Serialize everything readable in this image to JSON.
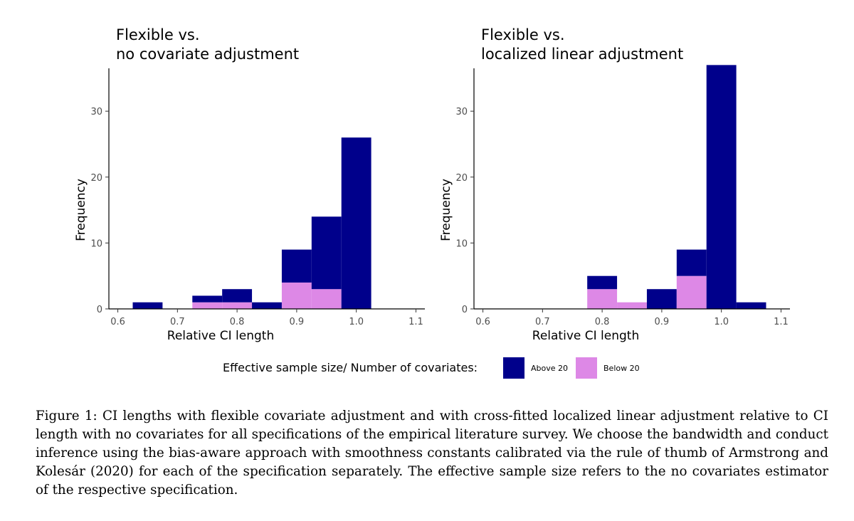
{
  "legend": {
    "title": "Effective sample size/ Number of covariates:",
    "items": [
      {
        "label": "Above 20",
        "color": "#00008b"
      },
      {
        "label": "Below 20",
        "color": "#dd88e6"
      }
    ]
  },
  "chart_data": [
    {
      "type": "bar",
      "stacked": true,
      "title_lines": [
        "Flexible vs.",
        "no covariate adjustment"
      ],
      "xlabel": "Relative CI length",
      "ylabel": "Frequency",
      "xlim": [
        0.585,
        1.115
      ],
      "ylim": [
        0,
        36.5
      ],
      "xticks": [
        "0.6",
        "0.7",
        "0.8",
        "0.9",
        "1.0",
        "1.1"
      ],
      "yticks": [
        "0",
        "10",
        "20",
        "30"
      ],
      "bin_width": 0.05,
      "bin_centers": [
        0.65,
        0.75,
        0.8,
        0.85,
        0.9,
        0.95,
        1.0
      ],
      "series": [
        {
          "name": "Below 20",
          "values": [
            0,
            1,
            1,
            0,
            4,
            3,
            0
          ]
        },
        {
          "name": "Above 20",
          "values": [
            1,
            1,
            2,
            1,
            5,
            11,
            26
          ]
        }
      ]
    },
    {
      "type": "bar",
      "stacked": true,
      "title_lines": [
        "Flexible vs.",
        "localized linear adjustment"
      ],
      "xlabel": "Relative CI length",
      "ylabel": "Frequency",
      "xlim": [
        0.585,
        1.115
      ],
      "ylim": [
        0,
        36.5
      ],
      "xticks": [
        "0.6",
        "0.7",
        "0.8",
        "0.9",
        "1.0",
        "1.1"
      ],
      "yticks": [
        "0",
        "10",
        "20",
        "30"
      ],
      "bin_width": 0.05,
      "bin_centers": [
        0.8,
        0.85,
        0.9,
        0.95,
        1.0,
        1.05
      ],
      "series": [
        {
          "name": "Below 20",
          "values": [
            3,
            1,
            0,
            5,
            0,
            0
          ]
        },
        {
          "name": "Above 20",
          "values": [
            2,
            0,
            3,
            4,
            37,
            1
          ]
        }
      ]
    }
  ],
  "caption": "Figure 1: CI lengths with flexible covariate adjustment and with cross-fitted localized linear adjustment relative to CI length with no covariates for all specifications of the empirical literature survey. We choose the bandwidth and conduct inference using the bias-aware approach with smoothness constants calibrated via the rule of thumb of Armstrong and Kolesár (2020) for each of the specification separately. The effective sample size refers to the no covariates estimator of the respective specification."
}
